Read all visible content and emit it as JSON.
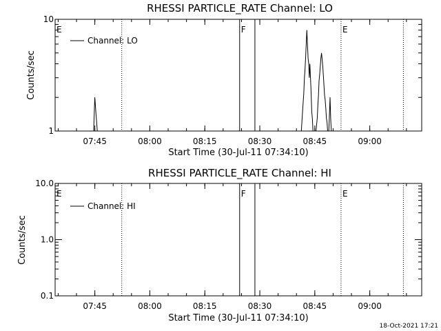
{
  "chart_data": [
    {
      "type": "line",
      "title": "RHESSI PARTICLE_RATE Channel: LO",
      "xlabel": "Start Time (30-Jul-11 07:34:10)",
      "ylabel": "Counts/sec",
      "yscale": "log",
      "ylim": [
        1,
        10
      ],
      "xlim": [
        "07:34:10",
        "09:14:10"
      ],
      "ytick_labels": [
        "1",
        "10"
      ],
      "xtick_labels": [
        "07:45",
        "08:00",
        "08:15",
        "08:30",
        "08:45",
        "09:00"
      ],
      "legend": {
        "position": "top-left",
        "label": "Channel: LO"
      },
      "grid": false,
      "series": [
        {
          "name": "Channel: LO",
          "x": [
            "07:34:10",
            "07:44:40",
            "07:44:50",
            "07:45:00",
            "07:45:20",
            "07:45:40",
            "07:46:00",
            "08:41:00",
            "08:41:20",
            "08:41:40",
            "08:42:00",
            "08:42:10",
            "08:42:20",
            "08:42:30",
            "08:42:40",
            "08:42:50",
            "08:43:00",
            "08:43:10",
            "08:43:20",
            "08:43:30",
            "08:43:40",
            "08:43:50",
            "08:44:00",
            "08:44:10",
            "08:44:20",
            "08:44:30",
            "08:44:40",
            "08:44:50",
            "08:45:00",
            "08:45:20",
            "08:45:40",
            "08:45:50",
            "08:46:00",
            "08:46:10",
            "08:46:20",
            "08:46:30",
            "08:46:40",
            "08:46:50",
            "08:47:00",
            "08:47:10",
            "08:47:20",
            "08:47:30",
            "08:47:40",
            "08:47:50",
            "08:48:00",
            "08:48:10",
            "08:48:20",
            "08:48:30",
            "08:48:40",
            "08:48:50",
            "08:49:00",
            "08:49:10",
            "08:49:20",
            "08:49:30",
            "08:49:40",
            "08:49:50",
            "08:50:00",
            "08:50:30",
            "09:14:10"
          ],
          "values": [
            1,
            1,
            1.4,
            2,
            1.4,
            1,
            1,
            1,
            1,
            1.5,
            2.2,
            3,
            3.5,
            4.5,
            6,
            8,
            6,
            4.5,
            4,
            3,
            4,
            3,
            2.2,
            1.5,
            1.3,
            1,
            1,
            1,
            1,
            1,
            1.3,
            1.7,
            2.1,
            2.8,
            3.2,
            3.8,
            4.5,
            5,
            4.4,
            3.8,
            3.2,
            2.6,
            2.1,
            1.9,
            1.6,
            1.3,
            1.2,
            1,
            1,
            1,
            1.4,
            2,
            1.3,
            1,
            1,
            1,
            1,
            1,
            1
          ]
        }
      ],
      "annotations": [
        {
          "label": "E",
          "x": "07:34:10"
        },
        {
          "label": "F",
          "x": "08:24:30"
        },
        {
          "label": "E",
          "x": "08:52:10"
        }
      ],
      "markers": {
        "dotted": [
          "07:52:20",
          "08:52:10",
          "09:09:10"
        ],
        "solid": [
          "08:24:30",
          "08:28:40"
        ]
      }
    },
    {
      "type": "line",
      "title": "RHESSI PARTICLE_RATE Channel: HI",
      "xlabel": "Start Time (30-Jul-11 07:34:10)",
      "ylabel": "Counts/sec",
      "yscale": "log",
      "ylim": [
        0.1,
        10
      ],
      "xlim": [
        "07:34:10",
        "09:14:10"
      ],
      "ytick_labels": [
        "0.1",
        "1.0",
        "10.0"
      ],
      "xtick_labels": [
        "07:45",
        "08:00",
        "08:15",
        "08:30",
        "08:45",
        "09:00"
      ],
      "legend": {
        "position": "top-left",
        "label": "Channel: HI"
      },
      "grid": false,
      "series": [
        {
          "name": "Channel: HI",
          "x": [],
          "values": []
        }
      ],
      "annotations": [
        {
          "label": "E",
          "x": "07:34:10"
        },
        {
          "label": "F",
          "x": "08:24:30"
        },
        {
          "label": "E",
          "x": "08:52:10"
        }
      ],
      "markers": {
        "dotted": [
          "07:52:20",
          "08:52:10",
          "09:09:10"
        ],
        "solid": [
          "08:24:30",
          "08:28:40"
        ]
      }
    }
  ],
  "footer": {
    "timestamp": "18-Oct-2021 17:21"
  }
}
